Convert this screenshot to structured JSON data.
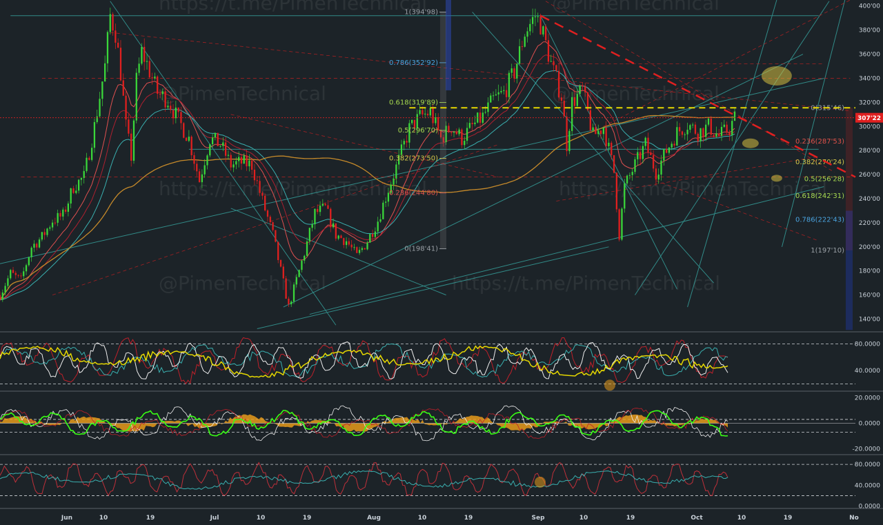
{
  "chart_data": {
    "type": "candlestick",
    "watermarks": [
      "https://t.me/PimenTechnical",
      "@PimenTechnical"
    ],
    "price_axis": {
      "range": [
        130,
        405
      ],
      "ticks": [
        "140'00",
        "160'00",
        "180'00",
        "200'00",
        "220'00",
        "240'00",
        "260'00",
        "280'00",
        "300'00",
        "320'00",
        "340'00",
        "360'00",
        "380'00",
        "400'00"
      ]
    },
    "current_price": "307'22",
    "x_axis": {
      "ticks": [
        "Jun",
        "10",
        "19",
        "Jul",
        "10",
        "19",
        "Aug",
        "10",
        "19",
        "Sep",
        "10",
        "19",
        "Oct",
        "10",
        "19",
        "No"
      ]
    },
    "price_series": [
      [
        "05-22",
        160
      ],
      [
        "05-24",
        178
      ],
      [
        "05-26",
        172
      ],
      [
        "05-28",
        200
      ],
      [
        "05-30",
        208
      ],
      [
        "06-01",
        222
      ],
      [
        "06-03",
        226
      ],
      [
        "06-05",
        250
      ],
      [
        "06-07",
        258
      ],
      [
        "06-09",
        300
      ],
      [
        "06-11",
        350
      ],
      [
        "06-12",
        392
      ],
      [
        "06-13",
        378
      ],
      [
        "06-14",
        345
      ],
      [
        "06-15",
        300
      ],
      [
        "06-16",
        275
      ],
      [
        "06-17",
        338
      ],
      [
        "06-18",
        362
      ],
      [
        "06-19",
        352
      ],
      [
        "06-20",
        340
      ],
      [
        "06-21",
        328
      ],
      [
        "06-23",
        322
      ],
      [
        "06-25",
        305
      ],
      [
        "06-27",
        290
      ],
      [
        "06-29",
        255
      ],
      [
        "07-01",
        290
      ],
      [
        "07-03",
        285
      ],
      [
        "07-05",
        268
      ],
      [
        "07-07",
        270
      ],
      [
        "07-09",
        268
      ],
      [
        "07-11",
        238
      ],
      [
        "07-13",
        210
      ],
      [
        "07-15",
        170
      ],
      [
        "07-16",
        150
      ],
      [
        "07-17",
        165
      ],
      [
        "07-19",
        195
      ],
      [
        "07-21",
        228
      ],
      [
        "07-23",
        232
      ],
      [
        "07-25",
        210
      ],
      [
        "07-27",
        205
      ],
      [
        "07-29",
        192
      ],
      [
        "07-31",
        205
      ],
      [
        "08-02",
        222
      ],
      [
        "08-04",
        248
      ],
      [
        "08-06",
        272
      ],
      [
        "08-08",
        298
      ],
      [
        "08-10",
        308
      ],
      [
        "08-12",
        312
      ],
      [
        "08-14",
        290
      ],
      [
        "08-16",
        300
      ],
      [
        "08-18",
        290
      ],
      [
        "08-20",
        300
      ],
      [
        "08-22",
        308
      ],
      [
        "08-24",
        322
      ],
      [
        "08-26",
        328
      ],
      [
        "08-28",
        345
      ],
      [
        "08-30",
        378
      ],
      [
        "09-01",
        392
      ],
      [
        "09-02",
        385
      ],
      [
        "09-04",
        352
      ],
      [
        "09-06",
        325
      ],
      [
        "09-07",
        285
      ],
      [
        "09-08",
        320
      ],
      [
        "09-10",
        330
      ],
      [
        "09-12",
        292
      ],
      [
        "09-14",
        300
      ],
      [
        "09-16",
        262
      ],
      [
        "09-17",
        210
      ],
      [
        "09-18",
        250
      ],
      [
        "09-20",
        268
      ],
      [
        "09-22",
        285
      ],
      [
        "09-24",
        262
      ],
      [
        "09-26",
        280
      ],
      [
        "09-28",
        295
      ],
      [
        "09-30",
        302
      ],
      [
        "10-02",
        295
      ],
      [
        "10-04",
        300
      ],
      [
        "10-06",
        292
      ],
      [
        "10-08",
        298
      ],
      [
        "10-09",
        307
      ]
    ],
    "fib_levels": {
      "left": [
        {
          "label": "1(394'98)",
          "value": 394.98,
          "color": "#9aa0a6"
        },
        {
          "label": "0.786(352'92)",
          "value": 352.92,
          "color": "#4aa3df"
        },
        {
          "label": "0.618(319'89)",
          "value": 319.89,
          "color": "#a6d94f"
        },
        {
          "label": "0.5(296'70)",
          "value": 296.7,
          "color": "#a6d94f"
        },
        {
          "label": "0.382(273'50)",
          "value": 273.5,
          "color": "#d6c84a"
        },
        {
          "label": "0.236(244'80)",
          "value": 244.8,
          "color": "#e0524a"
        },
        {
          "label": "0(198'41)",
          "value": 198.41,
          "color": "#9aa0a6"
        }
      ],
      "right": [
        {
          "label": "0(315'46)",
          "value": 315.46,
          "color": "#9aa0a6"
        },
        {
          "label": "0.236(287'53)",
          "value": 287.53,
          "color": "#e0524a"
        },
        {
          "label": "0.382(270'24)",
          "value": 270.24,
          "color": "#d6c84a"
        },
        {
          "label": "0.5(256'28)",
          "value": 256.28,
          "color": "#a6d94f"
        },
        {
          "label": "0.618(242'31)",
          "value": 242.31,
          "color": "#a6d94f"
        },
        {
          "label": "0.786(222'43)",
          "value": 222.43,
          "color": "#4aa3df"
        },
        {
          "label": "1(197'10)",
          "value": 197.1,
          "color": "#9aa0a6"
        }
      ]
    },
    "panels": [
      {
        "ticks": [
          "80.0000",
          "40.0000"
        ],
        "ref_lines": [
          80,
          20
        ],
        "range": [
          10,
          95
        ]
      },
      {
        "ticks": [
          "20.0000",
          "0.0000",
          "-20.0000"
        ],
        "ref_lines": [
          3,
          -7
        ],
        "range": [
          -24,
          24
        ]
      },
      {
        "ticks": [
          "80.0000",
          "40.0000",
          "0.0000"
        ],
        "ref_lines": [
          80,
          20
        ],
        "range": [
          -3,
          96
        ]
      }
    ],
    "colors": {
      "background": "#1c2328",
      "up": "#3ad73a",
      "down": "#e0201f",
      "ema_fast": "#e05050",
      "ema_mid": "#b02030",
      "ema_teal": "#3ab0b0",
      "ma_long": "#c68a2a",
      "trend": "#37a5a0",
      "resistance": "#e02020",
      "current": "#e02020",
      "yellow_line": "#e6d800",
      "histogram": "#e69a1a"
    }
  }
}
